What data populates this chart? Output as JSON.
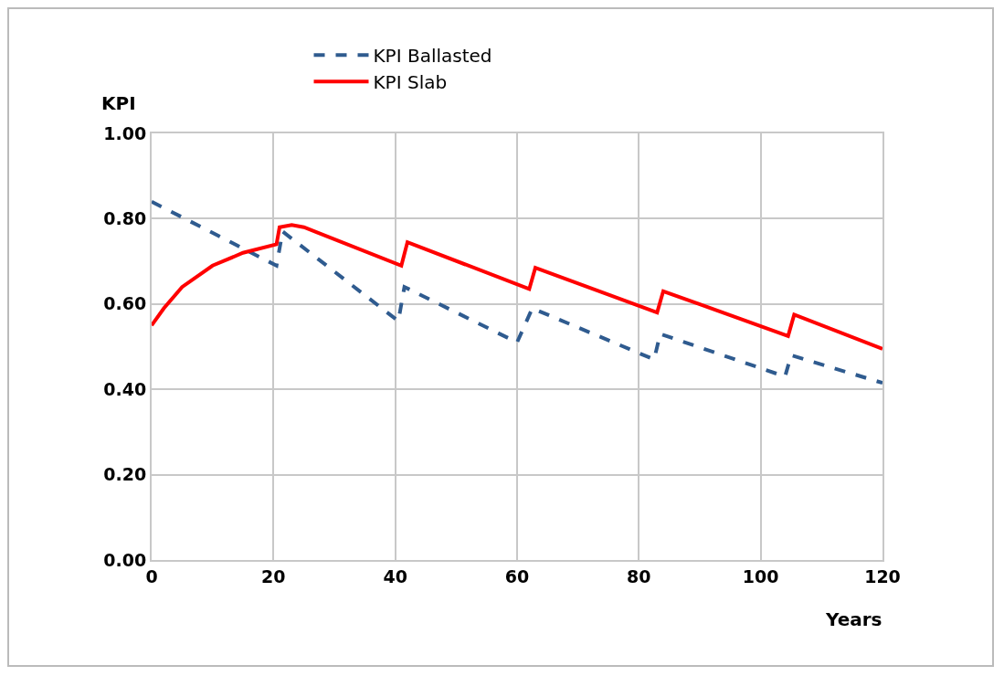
{
  "chart_data": {
    "type": "line",
    "xlabel": "Years",
    "ylabel": "KPI",
    "xlim": [
      0,
      120
    ],
    "xticks": [
      0,
      20,
      40,
      60,
      80,
      100,
      120
    ],
    "ylim": [
      0,
      1
    ],
    "yticks": [
      {
        "value": 0,
        "label": "0.00"
      },
      {
        "value": 0.2,
        "label": "0.20"
      },
      {
        "value": 0.4,
        "label": "0.40"
      },
      {
        "value": 0.6,
        "label": "0.60"
      },
      {
        "value": 0.8,
        "label": "0.80"
      },
      {
        "value": 1,
        "label": "1.00"
      }
    ],
    "grid": true,
    "legend": "top",
    "marker": "none",
    "series": [
      {
        "name": "KPI Ballasted",
        "color": "#2f5b8f",
        "line_style": "dashed",
        "x": [
          0,
          20.5,
          21.5,
          40.5,
          41.5,
          60,
          62.5,
          82.5,
          83.5,
          104,
          105,
          120
        ],
        "values": [
          0.84,
          0.69,
          0.77,
          0.56,
          0.64,
          0.51,
          0.59,
          0.47,
          0.53,
          0.43,
          0.48,
          0.415
        ]
      },
      {
        "name": "KPI Slab",
        "color": "#ff0000",
        "line_style": "solid",
        "x": [
          0,
          2,
          5,
          10,
          15,
          20.5,
          21,
          23,
          25,
          41,
          42,
          62,
          63,
          83,
          84,
          104.5,
          105.5,
          120
        ],
        "values": [
          0.55,
          0.59,
          0.64,
          0.69,
          0.72,
          0.74,
          0.78,
          0.785,
          0.78,
          0.69,
          0.745,
          0.635,
          0.685,
          0.58,
          0.63,
          0.525,
          0.575,
          0.495
        ]
      }
    ]
  }
}
